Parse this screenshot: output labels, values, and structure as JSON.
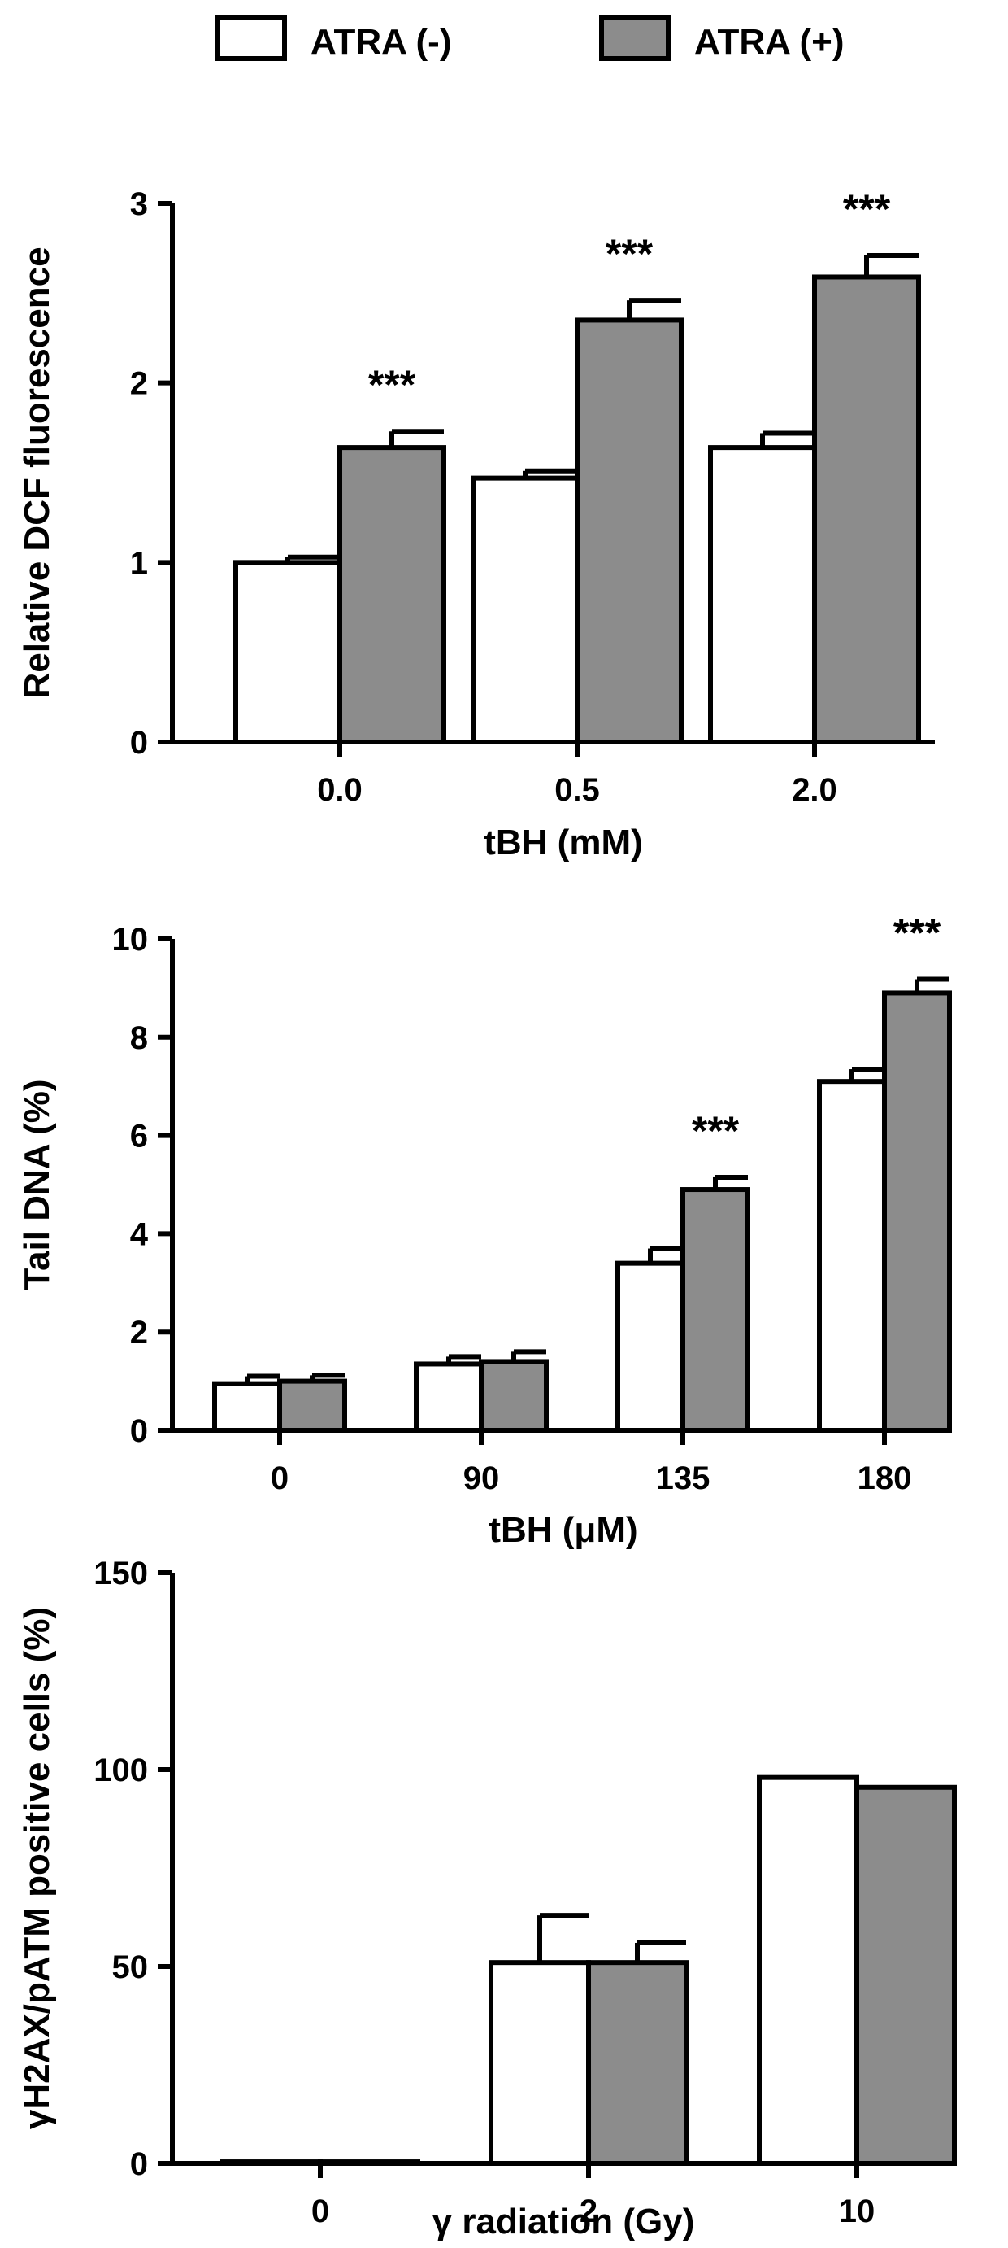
{
  "legend": {
    "items": [
      {
        "label": "ATRA (-)",
        "color": "#ffffff"
      },
      {
        "label": "ATRA (+)",
        "color": "#8c8c8c"
      }
    ]
  },
  "colors": {
    "atra_minus": "#ffffff",
    "atra_plus": "#8c8c8c",
    "stroke": "#000000"
  },
  "chart_data": [
    {
      "type": "bar",
      "title": "",
      "xlabel": "tBH (mM)",
      "ylabel": "Relative DCF fluorescence",
      "ylim": [
        0,
        3
      ],
      "yticks": [
        "0",
        "1",
        "2",
        "3"
      ],
      "categories": [
        "0.0",
        "0.5",
        "2.0"
      ],
      "series": [
        {
          "name": "ATRA (-)",
          "values": [
            1.0,
            1.47,
            1.64
          ],
          "errors": [
            0.03,
            0.04,
            0.08
          ]
        },
        {
          "name": "ATRA (+)",
          "values": [
            1.64,
            2.35,
            2.59
          ],
          "errors": [
            0.09,
            0.11,
            0.12
          ]
        }
      ],
      "annotations": [
        "***",
        "***",
        "***"
      ]
    },
    {
      "type": "bar",
      "title": "",
      "xlabel": "tBH (μM)",
      "ylabel": "Tail DNA (%)",
      "ylim": [
        0,
        10
      ],
      "yticks": [
        "0",
        "2",
        "4",
        "6",
        "8",
        "10"
      ],
      "categories": [
        "0",
        "90",
        "135",
        "180"
      ],
      "series": [
        {
          "name": "ATRA (-)",
          "values": [
            0.95,
            1.35,
            3.4,
            7.1
          ],
          "errors": [
            0.15,
            0.15,
            0.3,
            0.25
          ]
        },
        {
          "name": "ATRA (+)",
          "values": [
            1.0,
            1.4,
            4.9,
            8.9
          ],
          "errors": [
            0.12,
            0.2,
            0.25,
            0.28
          ]
        }
      ],
      "annotations": [
        "",
        "",
        "***",
        "***"
      ]
    },
    {
      "type": "bar",
      "title": "",
      "xlabel": "γ radiation (Gy)",
      "ylabel": "γH2AX/pATM positive cells (%)",
      "ylim": [
        0,
        150
      ],
      "yticks": [
        "0",
        "50",
        "100",
        "150"
      ],
      "categories": [
        "0",
        "2",
        "10"
      ],
      "series": [
        {
          "name": "ATRA (-)",
          "values": [
            0.4,
            51,
            98
          ],
          "errors": [
            0,
            12,
            0
          ]
        },
        {
          "name": "ATRA (+)",
          "values": [
            0.4,
            51,
            95.5
          ],
          "errors": [
            0,
            5,
            0
          ]
        }
      ],
      "annotations": [
        "",
        "",
        ""
      ]
    }
  ]
}
